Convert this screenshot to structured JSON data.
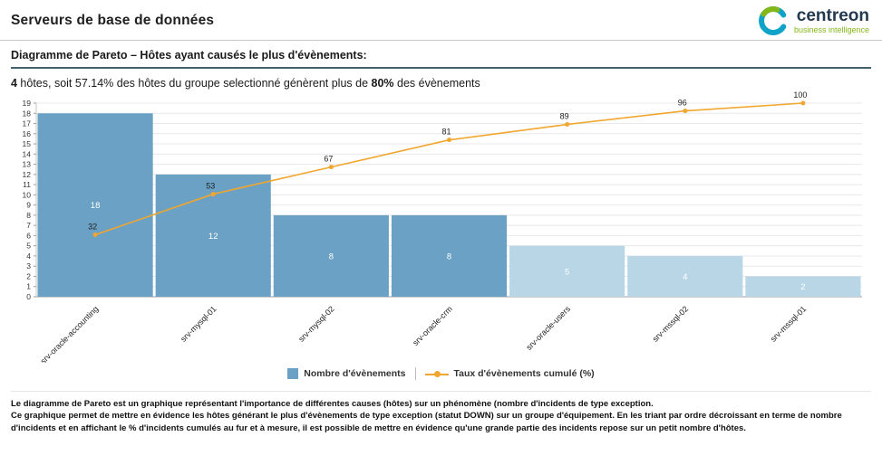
{
  "page": {
    "title": "Serveurs de base de données"
  },
  "logo": {
    "brand": "centreon",
    "tagline": "business intelligence",
    "brand_color": "#22394f",
    "tagline_color": "#84b819",
    "icon_blue": "#0fa3c7",
    "icon_green": "#84b819"
  },
  "section": {
    "title": "Diagramme de Pareto – Hôtes ayant causés le plus d'évènements:"
  },
  "summary": {
    "parts": [
      {
        "text": "4",
        "bold": true
      },
      {
        "text": " hôtes, soit 57.14% des hôtes du groupe selectionné génèrent plus de ",
        "bold": false
      },
      {
        "text": "80%",
        "bold": true
      },
      {
        "text": " des évènements",
        "bold": false
      }
    ]
  },
  "chart_data": {
    "type": "bar",
    "subtype": "pareto",
    "categories": [
      "srv-oracle-accounting",
      "srv-mysql-01",
      "srv-mysql-02",
      "srv-oracle-crm",
      "srv-oracle-users",
      "srv-mssql-02",
      "srv-mssql-01"
    ],
    "series": [
      {
        "name": "Nombre d'évènements",
        "type": "bar",
        "values": [
          18,
          12,
          8,
          8,
          5,
          4,
          2
        ]
      },
      {
        "name": "Taux d'évènements cumulé (%)",
        "type": "line",
        "values": [
          32,
          53,
          67,
          81,
          89,
          96,
          100
        ],
        "range": [
          0,
          100
        ]
      }
    ],
    "ylim": [
      0,
      19
    ],
    "y_tick_step": 1,
    "grid": true,
    "highlight_count": 4,
    "bar_color_highlight": "#6aa1c4",
    "bar_color_normal": "#b9d6e7",
    "line_color": "#f0a62f",
    "legend_position": "bottom"
  },
  "legend": {
    "items": [
      {
        "label": "Nombre d'évènements",
        "swatch": "square",
        "color": "#6aa1c4"
      },
      {
        "label": "Taux d'évènements cumulé (%)",
        "swatch": "line-dot",
        "color": "#f0a62f"
      }
    ]
  },
  "footer": {
    "lines": [
      "Le diagramme de Pareto est un graphique représentant l'importance de différentes causes (hôtes) sur un phénomène (nombre d'incidents de type exception.",
      "Ce graphique permet de mettre en évidence les hôtes générant le plus d'évènements de type exception (statut DOWN) sur un groupe d'équipement. En les triant par ordre décroissant en terme de nombre d'incidents et en affichant le % d'incidents cumulés au fur et à mesure, il est possible de mettre en évidence qu'une grande partie des incidents repose sur un petit nombre d'hôtes."
    ]
  }
}
